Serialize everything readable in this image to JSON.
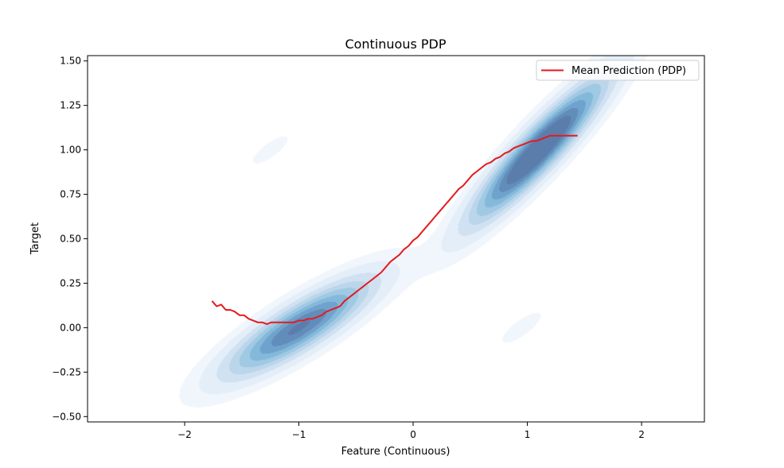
{
  "chart_data": {
    "type": "line",
    "title": "Continuous PDP",
    "xlabel": "Feature (Continuous)",
    "ylabel": "Target",
    "xlim": [
      -2.85,
      2.55
    ],
    "ylim": [
      -0.53,
      1.53
    ],
    "xticks": [
      -2,
      -1,
      0,
      1,
      2
    ],
    "xtick_labels": [
      "−2",
      "−1",
      "0",
      "1",
      "2"
    ],
    "yticks": [
      -0.5,
      -0.25,
      0.0,
      0.25,
      0.5,
      0.75,
      1.0,
      1.25,
      1.5
    ],
    "ytick_labels": [
      "−0.50",
      "−0.25",
      "0.00",
      "0.25",
      "0.50",
      "0.75",
      "1.00",
      "1.25",
      "1.50"
    ],
    "grid": false,
    "legend_position": "top-right",
    "colors": {
      "line": "#e41a1c",
      "density": "#1f77b4"
    },
    "series": [
      {
        "name": "Mean Prediction (PDP)",
        "kind": "line",
        "x": [
          -1.76,
          -1.72,
          -1.68,
          -1.64,
          -1.6,
          -1.56,
          -1.52,
          -1.48,
          -1.44,
          -1.4,
          -1.36,
          -1.32,
          -1.28,
          -1.24,
          -1.2,
          -1.16,
          -1.12,
          -1.08,
          -1.04,
          -1.0,
          -0.96,
          -0.92,
          -0.88,
          -0.84,
          -0.8,
          -0.76,
          -0.72,
          -0.68,
          -0.64,
          -0.6,
          -0.56,
          -0.52,
          -0.48,
          -0.44,
          -0.4,
          -0.36,
          -0.32,
          -0.28,
          -0.24,
          -0.2,
          -0.16,
          -0.12,
          -0.08,
          -0.04,
          0.0,
          0.04,
          0.08,
          0.12,
          0.16,
          0.2,
          0.24,
          0.28,
          0.32,
          0.36,
          0.4,
          0.44,
          0.48,
          0.52,
          0.56,
          0.6,
          0.64,
          0.68,
          0.72,
          0.76,
          0.8,
          0.84,
          0.88,
          0.92,
          0.96,
          1.0,
          1.04,
          1.08,
          1.12,
          1.16,
          1.2,
          1.24,
          1.28,
          1.32,
          1.36,
          1.4,
          1.44
        ],
        "y": [
          0.15,
          0.12,
          0.13,
          0.1,
          0.1,
          0.09,
          0.07,
          0.07,
          0.05,
          0.04,
          0.03,
          0.03,
          0.02,
          0.03,
          0.03,
          0.03,
          0.03,
          0.03,
          0.03,
          0.04,
          0.04,
          0.05,
          0.05,
          0.06,
          0.07,
          0.09,
          0.1,
          0.11,
          0.12,
          0.15,
          0.17,
          0.19,
          0.21,
          0.23,
          0.25,
          0.27,
          0.29,
          0.31,
          0.34,
          0.37,
          0.39,
          0.41,
          0.44,
          0.46,
          0.49,
          0.51,
          0.54,
          0.57,
          0.6,
          0.63,
          0.66,
          0.69,
          0.72,
          0.75,
          0.78,
          0.8,
          0.83,
          0.86,
          0.88,
          0.9,
          0.92,
          0.93,
          0.95,
          0.96,
          0.98,
          0.99,
          1.01,
          1.02,
          1.03,
          1.04,
          1.05,
          1.05,
          1.06,
          1.07,
          1.08,
          1.08,
          1.08,
          1.08,
          1.08,
          1.08,
          1.08
        ]
      }
    ],
    "density": {
      "kind": "filled-contour",
      "levels": 10,
      "modes": [
        {
          "cx": 1.1,
          "cy": 1.0,
          "sx": 0.38,
          "sy": 0.26,
          "rho": 0.92,
          "w": 1.0
        },
        {
          "cx": -1.0,
          "cy": 0.0,
          "sx": 0.42,
          "sy": 0.18,
          "rho": 0.85,
          "w": 0.78
        },
        {
          "cx": -1.25,
          "cy": 1.0,
          "sx": 0.18,
          "sy": 0.09,
          "rho": 0.8,
          "w": 0.05
        },
        {
          "cx": 0.95,
          "cy": 0.0,
          "sx": 0.2,
          "sy": 0.1,
          "rho": 0.8,
          "w": 0.05
        }
      ]
    }
  }
}
